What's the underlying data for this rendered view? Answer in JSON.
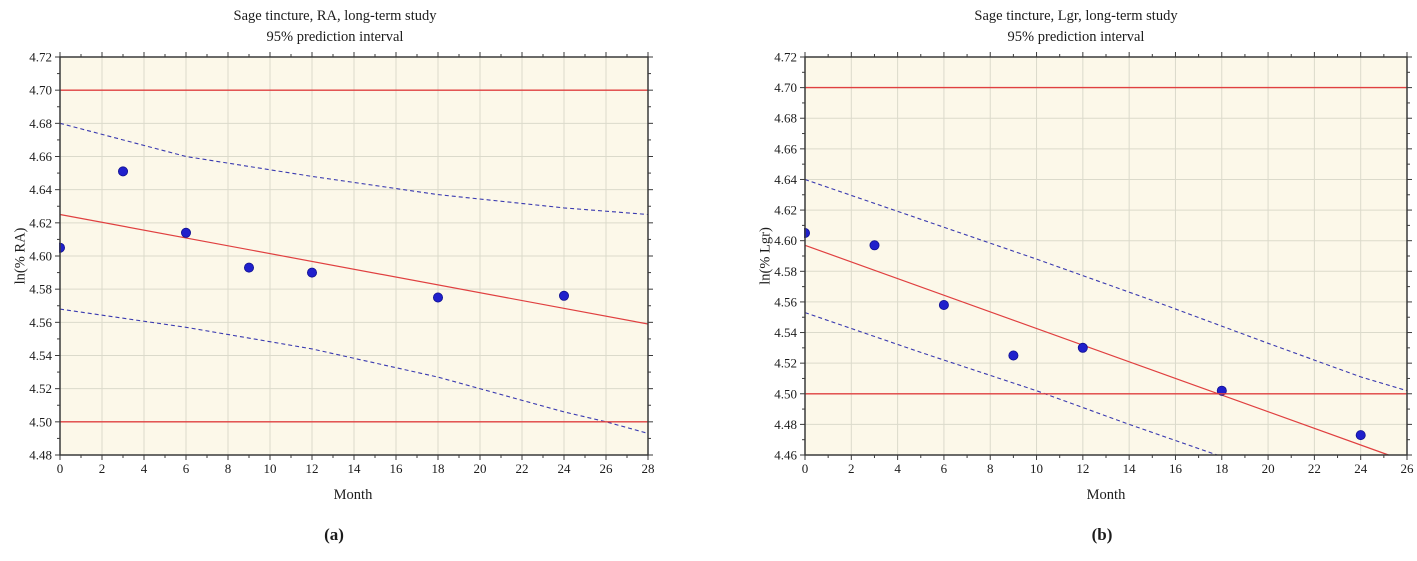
{
  "page": {
    "background": "#FFFFFF"
  },
  "colors": {
    "plot_background": "#FCF8E9",
    "grid": "#DBDACB",
    "frame": "#3A3A3A",
    "control_line": "#E04040",
    "trend_line": "#E04040",
    "prediction_line": "#3A3AB0",
    "point_fill": "#2020CC",
    "point_edge": "#101090",
    "text": "#1C1C1C"
  },
  "chart_data": [
    {
      "type": "scatter",
      "panel": "a",
      "caption": "(a)",
      "title": "Sage tincture, RA, long-term study",
      "subtitle": "95% prediction interval",
      "xlabel": "Month",
      "ylabel": "ln(% RA)",
      "xlim": [
        0,
        28
      ],
      "ylim": [
        4.48,
        4.72
      ],
      "xtick_step": 2,
      "ytick_step": 0.02,
      "xminor_step": 1,
      "yminor_step": 0.01,
      "grid": "on",
      "legend": "none",
      "control_limits": [
        4.5,
        4.7
      ],
      "points": {
        "x": [
          0,
          3,
          6,
          9,
          12,
          18,
          24
        ],
        "y": [
          4.605,
          4.651,
          4.614,
          4.593,
          4.59,
          4.575,
          4.576
        ]
      },
      "trend_line": [
        [
          0,
          4.625
        ],
        [
          28,
          4.559
        ]
      ],
      "upper_prediction": [
        [
          0,
          4.68
        ],
        [
          6,
          4.66
        ],
        [
          12,
          4.648
        ],
        [
          18,
          4.637
        ],
        [
          24,
          4.629
        ],
        [
          28,
          4.625
        ]
      ],
      "lower_prediction": [
        [
          0,
          4.568
        ],
        [
          6,
          4.557
        ],
        [
          12,
          4.544
        ],
        [
          18,
          4.527
        ],
        [
          24,
          4.506
        ],
        [
          26,
          4.5
        ],
        [
          28,
          4.493
        ]
      ]
    },
    {
      "type": "scatter",
      "panel": "b",
      "caption": "(b)",
      "title": "Sage tincture, Lgr, long-term study",
      "subtitle": "95% prediction interval",
      "xlabel": "Month",
      "ylabel": "ln(% Lgr)",
      "xlim": [
        0,
        26
      ],
      "ylim": [
        4.46,
        4.72
      ],
      "xtick_step": 2,
      "ytick_step": 0.02,
      "xminor_step": 1,
      "yminor_step": 0.01,
      "grid": "on",
      "legend": "none",
      "control_limits": [
        4.5,
        4.7
      ],
      "points": {
        "x": [
          0,
          3,
          6,
          9,
          12,
          18,
          24
        ],
        "y": [
          4.605,
          4.597,
          4.558,
          4.525,
          4.53,
          4.502,
          4.473
        ]
      },
      "trend_line": [
        [
          0,
          4.597
        ],
        [
          25.2,
          4.46
        ]
      ],
      "upper_prediction": [
        [
          0,
          4.64
        ],
        [
          5,
          4.614
        ],
        [
          10,
          4.588
        ],
        [
          15,
          4.561
        ],
        [
          20,
          4.533
        ],
        [
          24,
          4.511
        ],
        [
          26,
          4.502
        ]
      ],
      "lower_prediction": [
        [
          0,
          4.553
        ],
        [
          5,
          4.527
        ],
        [
          10,
          4.502
        ],
        [
          14,
          4.48
        ],
        [
          17.8,
          4.46
        ]
      ]
    }
  ]
}
